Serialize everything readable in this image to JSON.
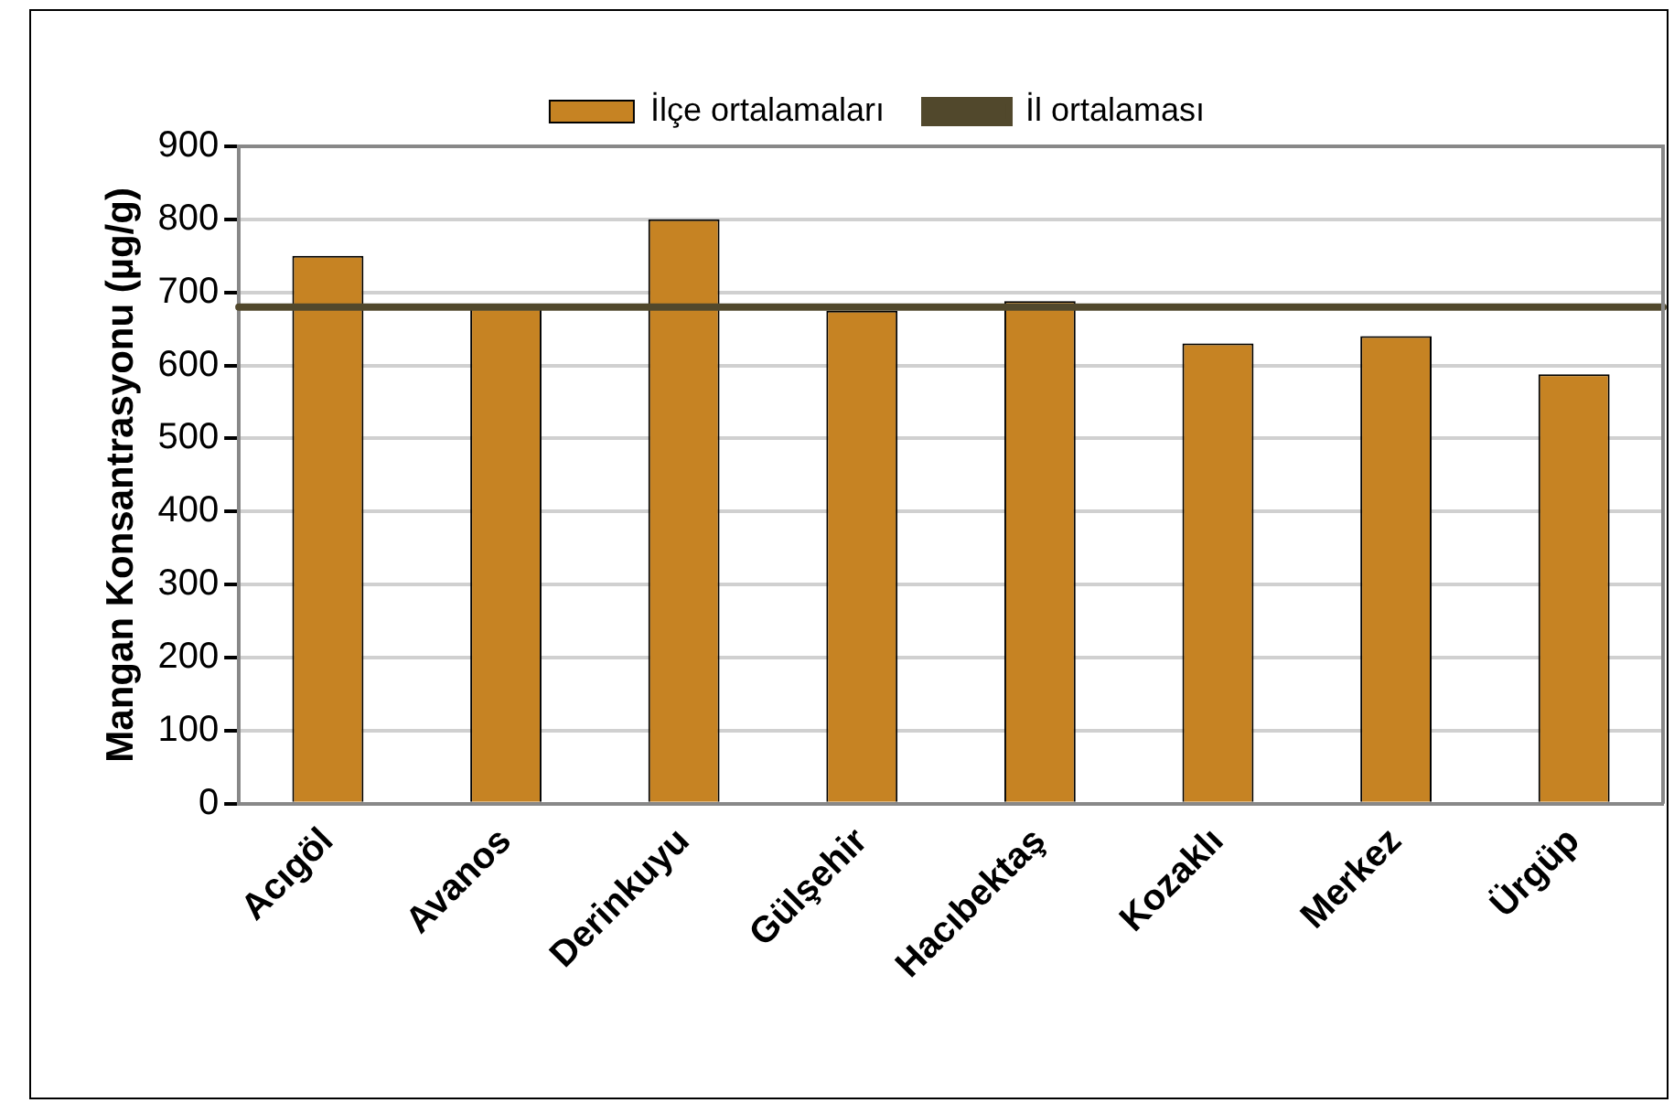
{
  "chart_data": {
    "type": "bar",
    "ylabel": "Mangan Konsantrasyonu (µg/g)",
    "categories": [
      "Acıgöl",
      "Avanos",
      "Derinkuyu",
      "Gülşehir",
      "Hacıbektaş",
      "Kozaklı",
      "Merkez",
      "Ürgüp"
    ],
    "series": [
      {
        "name": "İlçe ortalamaları",
        "color": "#c68323",
        "values": [
          750,
          678,
          800,
          675,
          688,
          630,
          640,
          588
        ]
      }
    ],
    "ref_lines": [
      {
        "axis": "y",
        "value": 680,
        "label": "İl ortalaması",
        "color": "#51482c"
      }
    ],
    "ylim": [
      0,
      900
    ],
    "yticks": [
      0,
      100,
      200,
      300,
      400,
      500,
      600,
      700,
      800,
      900
    ],
    "grid": "y",
    "legend": "top"
  }
}
